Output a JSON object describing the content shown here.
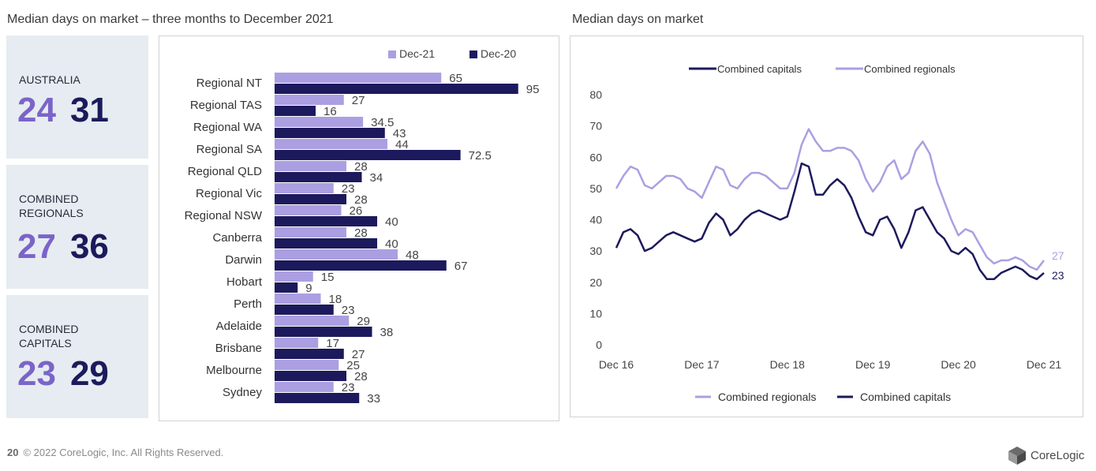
{
  "left_title": "Median days on market – three months to December 2021",
  "right_title": "Median days on market",
  "cards": [
    {
      "label_lines": [
        "AUSTRALIA"
      ],
      "current": "24",
      "previous": "31"
    },
    {
      "label_lines": [
        "COMBINED",
        "REGIONALS"
      ],
      "current": "27",
      "previous": "36"
    },
    {
      "label_lines": [
        "COMBINED",
        "CAPITALS"
      ],
      "current": "23",
      "previous": "29"
    }
  ],
  "colors": {
    "light": "#ab9fe2",
    "dark": "#1c1a5c",
    "card_bg": "#e6ecf1"
  },
  "footer": {
    "page": "20",
    "text": "© 2022 CoreLogic, Inc. All Rights Reserved."
  },
  "logo": {
    "text": "CoreLogic",
    "icon": "corelogic-cube-icon"
  },
  "chart_data": [
    {
      "type": "bar",
      "orientation": "horizontal",
      "legend_position": "top-right",
      "categories": [
        "Regional NT",
        "Regional TAS",
        "Regional WA",
        "Regional SA",
        "Regional QLD",
        "Regional Vic",
        "Regional NSW",
        "Canberra",
        "Darwin",
        "Hobart",
        "Perth",
        "Adelaide",
        "Brisbane",
        "Melbourne",
        "Sydney"
      ],
      "series": [
        {
          "name": "Dec-21",
          "values": [
            65,
            27,
            34.5,
            44,
            28,
            23,
            26,
            28,
            48,
            15,
            18,
            29,
            17,
            25,
            23
          ]
        },
        {
          "name": "Dec-20",
          "values": [
            95,
            16,
            43,
            72.5,
            34,
            28,
            40,
            40,
            67,
            9,
            23,
            38,
            27,
            28,
            33
          ]
        }
      ],
      "xlim": [
        0,
        100
      ]
    },
    {
      "type": "line",
      "ylim": [
        0,
        80
      ],
      "yticks": [
        0,
        10,
        20,
        30,
        40,
        50,
        60,
        70,
        80
      ],
      "xticks": [
        "Dec 16",
        "Dec 17",
        "Dec 18",
        "Dec 19",
        "Dec 20",
        "Dec 21"
      ],
      "legend_top": [
        "Combined capitals",
        "Combined regionals"
      ],
      "legend_bottom": [
        "Combined regionals",
        "Combined capitals"
      ],
      "series": [
        {
          "name": "Combined regionals",
          "end_label": "27",
          "values": [
            50,
            54,
            57,
            56,
            51,
            50,
            52,
            54,
            54,
            53,
            50,
            49,
            47,
            52,
            57,
            56,
            51,
            50,
            53,
            55,
            55,
            54,
            52,
            50,
            50,
            55,
            64,
            69,
            65,
            62,
            62,
            63,
            63,
            62,
            59,
            53,
            49,
            52,
            57,
            59,
            53,
            55,
            62,
            65,
            61,
            52,
            46,
            40,
            35,
            37,
            36,
            32,
            28,
            26,
            27,
            27,
            28,
            27,
            25,
            24,
            27
          ]
        },
        {
          "name": "Combined capitals",
          "end_label": "23",
          "values": [
            31,
            36,
            37,
            35,
            30,
            31,
            33,
            35,
            36,
            35,
            34,
            33,
            34,
            39,
            42,
            40,
            35,
            37,
            40,
            42,
            43,
            42,
            41,
            40,
            41,
            49,
            58,
            57,
            48,
            48,
            51,
            53,
            51,
            47,
            41,
            36,
            35,
            40,
            41,
            37,
            31,
            36,
            43,
            44,
            40,
            36,
            34,
            30,
            29,
            31,
            29,
            24,
            21,
            21,
            23,
            24,
            25,
            24,
            22,
            21,
            23
          ]
        }
      ]
    }
  ]
}
